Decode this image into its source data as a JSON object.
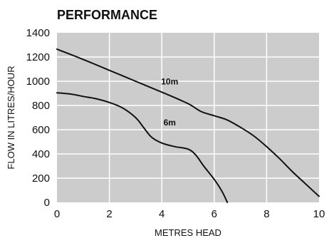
{
  "chart_data": {
    "type": "line",
    "title": "PERFORMANCE",
    "xlabel": "METRES HEAD",
    "ylabel": "FLOW IN LITRES/HOUR",
    "xlim": [
      0,
      10
    ],
    "ylim": [
      0,
      1400
    ],
    "xticks": [
      "0",
      "2",
      "4",
      "6",
      "8",
      "10"
    ],
    "yticks": [
      "0",
      "200",
      "400",
      "600",
      "800",
      "1000",
      "1200",
      "1400"
    ],
    "grid": true,
    "colors": {
      "plot_background": "#cccccc",
      "grid": "#ffffff",
      "line": "#111111"
    },
    "series": [
      {
        "name": "10m",
        "x": [
          0,
          1,
          2,
          3,
          4,
          5,
          5.5,
          6,
          6.5,
          7,
          7.5,
          8,
          8.5,
          9,
          9.5,
          10
        ],
        "y": [
          1265,
          1180,
          1090,
          1000,
          910,
          815,
          750,
          715,
          680,
          620,
          550,
          460,
          360,
          250,
          150,
          50
        ]
      },
      {
        "name": "6m",
        "x": [
          0,
          0.5,
          1,
          1.5,
          2,
          2.5,
          3,
          3.3,
          3.6,
          4,
          4.5,
          5,
          5.3,
          5.6,
          6,
          6.3,
          6.5
        ],
        "y": [
          905,
          895,
          875,
          855,
          825,
          780,
          700,
          620,
          540,
          490,
          460,
          440,
          390,
          300,
          190,
          90,
          0
        ]
      }
    ]
  }
}
